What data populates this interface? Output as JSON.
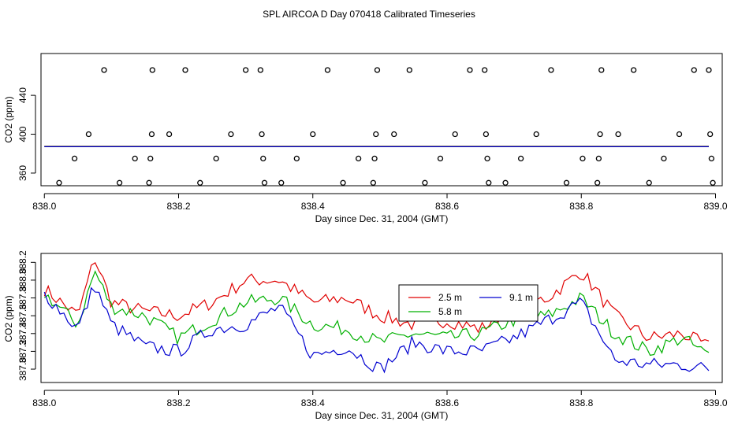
{
  "page": {
    "title": "SPL AIRCOA D  Day 070418  Calibrated Timeseries"
  },
  "chart_data": [
    {
      "type": "scatter",
      "xlabel": "Day since Dec. 31, 2004 (GMT)",
      "ylabel": "CO2 (ppm)",
      "xlim": [
        837.995,
        839.01
      ],
      "ylim": [
        347,
        483
      ],
      "xticks": [
        838.0,
        838.2,
        838.4,
        838.6,
        838.8,
        839.0
      ],
      "xtick_labels": [
        "838.0",
        "838.2",
        "838.4",
        "838.6",
        "838.8",
        "839.0"
      ],
      "yticks": [
        360,
        400,
        440
      ],
      "ytick_labels": [
        "360",
        "400",
        "440"
      ],
      "grid": false,
      "legend": "none",
      "points": [
        {
          "x": 838.022,
          "y": 350
        },
        {
          "x": 838.045,
          "y": 375
        },
        {
          "x": 838.066,
          "y": 400
        },
        {
          "x": 838.089,
          "y": 466
        },
        {
          "x": 838.112,
          "y": 350
        },
        {
          "x": 838.135,
          "y": 375
        },
        {
          "x": 838.156,
          "y": 350
        },
        {
          "x": 838.158,
          "y": 375
        },
        {
          "x": 838.16,
          "y": 400
        },
        {
          "x": 838.161,
          "y": 466
        },
        {
          "x": 838.186,
          "y": 400
        },
        {
          "x": 838.21,
          "y": 466
        },
        {
          "x": 838.232,
          "y": 350
        },
        {
          "x": 838.256,
          "y": 375
        },
        {
          "x": 838.278,
          "y": 400
        },
        {
          "x": 838.3,
          "y": 466
        },
        {
          "x": 838.322,
          "y": 466
        },
        {
          "x": 838.324,
          "y": 400
        },
        {
          "x": 838.326,
          "y": 375
        },
        {
          "x": 838.328,
          "y": 350
        },
        {
          "x": 838.353,
          "y": 350
        },
        {
          "x": 838.376,
          "y": 375
        },
        {
          "x": 838.4,
          "y": 400
        },
        {
          "x": 838.422,
          "y": 466
        },
        {
          "x": 838.445,
          "y": 350
        },
        {
          "x": 838.468,
          "y": 375
        },
        {
          "x": 838.49,
          "y": 350
        },
        {
          "x": 838.492,
          "y": 375
        },
        {
          "x": 838.494,
          "y": 400
        },
        {
          "x": 838.496,
          "y": 466
        },
        {
          "x": 838.521,
          "y": 400
        },
        {
          "x": 838.544,
          "y": 466
        },
        {
          "x": 838.567,
          "y": 350
        },
        {
          "x": 838.59,
          "y": 375
        },
        {
          "x": 838.612,
          "y": 400
        },
        {
          "x": 838.634,
          "y": 466
        },
        {
          "x": 838.656,
          "y": 466
        },
        {
          "x": 838.658,
          "y": 400
        },
        {
          "x": 838.66,
          "y": 375
        },
        {
          "x": 838.662,
          "y": 350
        },
        {
          "x": 838.687,
          "y": 350
        },
        {
          "x": 838.71,
          "y": 375
        },
        {
          "x": 838.733,
          "y": 400
        },
        {
          "x": 838.755,
          "y": 466
        },
        {
          "x": 838.778,
          "y": 350
        },
        {
          "x": 838.802,
          "y": 375
        },
        {
          "x": 838.824,
          "y": 350
        },
        {
          "x": 838.826,
          "y": 375
        },
        {
          "x": 838.828,
          "y": 400
        },
        {
          "x": 838.83,
          "y": 466
        },
        {
          "x": 838.855,
          "y": 400
        },
        {
          "x": 838.878,
          "y": 466
        },
        {
          "x": 838.901,
          "y": 350
        },
        {
          "x": 838.923,
          "y": 375
        },
        {
          "x": 838.946,
          "y": 400
        },
        {
          "x": 838.968,
          "y": 466
        },
        {
          "x": 838.99,
          "y": 466
        },
        {
          "x": 838.992,
          "y": 400
        },
        {
          "x": 838.994,
          "y": 375
        },
        {
          "x": 838.996,
          "y": 350
        }
      ],
      "baseline_series": [
        {
          "name": "2.5 m",
          "color": "#e00000",
          "level": 387.6
        },
        {
          "name": "5.8 m",
          "color": "#00b000",
          "level": 387.4
        },
        {
          "name": "9.1 m",
          "color": "#0000d0",
          "level": 387.2
        }
      ]
    },
    {
      "type": "line",
      "xlabel": "Day since Dec. 31, 2004 (GMT)",
      "ylabel": "CO2 (ppm)",
      "xlim": [
        837.995,
        839.01
      ],
      "ylim": [
        386.85,
        388.3
      ],
      "xticks": [
        838.0,
        838.2,
        838.4,
        838.6,
        838.8,
        839.0
      ],
      "xtick_labels": [
        "838.0",
        "838.2",
        "838.4",
        "838.6",
        "838.8",
        "839.0"
      ],
      "yticks": [
        387.0,
        387.2,
        387.4,
        387.6,
        387.8,
        388.0,
        388.2
      ],
      "ytick_labels": [
        "387.0",
        "387.2",
        "387.4",
        "387.6",
        "387.8",
        "388.0",
        "388.2"
      ],
      "grid": false,
      "legend": "upper-center",
      "x": [
        838.0,
        838.05,
        838.075,
        838.1,
        838.15,
        838.2,
        838.25,
        838.3,
        838.35,
        838.4,
        838.45,
        838.5,
        838.55,
        838.6,
        838.65,
        838.7,
        838.75,
        838.8,
        838.85,
        838.9,
        838.95,
        838.99
      ],
      "series": [
        {
          "name": "2.5 m",
          "color": "#e00000",
          "values": [
            387.9,
            387.6,
            388.25,
            387.75,
            387.65,
            387.6,
            387.75,
            388.0,
            388.0,
            387.75,
            387.8,
            387.6,
            387.5,
            387.55,
            387.45,
            387.7,
            387.8,
            388.1,
            387.6,
            387.35,
            387.4,
            387.25
          ]
        },
        {
          "name": "5.8 m",
          "color": "#00b000",
          "values": [
            387.85,
            387.5,
            388.1,
            387.7,
            387.6,
            387.35,
            387.55,
            387.75,
            387.8,
            387.5,
            387.45,
            387.3,
            387.4,
            387.35,
            387.4,
            387.55,
            387.6,
            387.8,
            387.4,
            387.2,
            387.35,
            387.15
          ]
        },
        {
          "name": "9.1 m",
          "color": "#0000d0",
          "values": [
            387.85,
            387.45,
            387.95,
            387.5,
            387.25,
            387.2,
            387.45,
            387.5,
            387.7,
            387.15,
            387.25,
            387.0,
            387.3,
            387.2,
            387.2,
            387.35,
            387.55,
            387.75,
            387.1,
            387.05,
            387.05,
            387.0
          ]
        }
      ]
    }
  ]
}
